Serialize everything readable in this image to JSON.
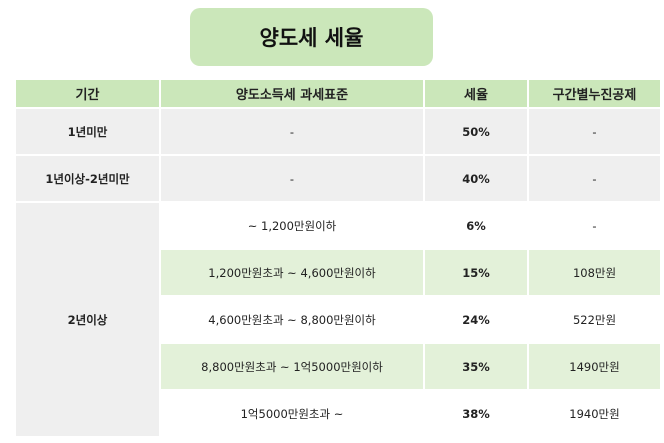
{
  "title": "양도세 세율",
  "headers": {
    "period": "기간",
    "tax_base": "양도소득세 과세표준",
    "rate": "세율",
    "deduction": "구간별누진공제"
  },
  "rows": [
    {
      "period": "1년미만",
      "tax_base": "-",
      "rate": "50%",
      "deduction": "-"
    },
    {
      "period": "1년이상-2년미만",
      "tax_base": "-",
      "rate": "40%",
      "deduction": "-"
    }
  ],
  "group": {
    "period": "2년이상",
    "rows": [
      {
        "tax_base": "~ 1,200만원이하",
        "rate": "6%",
        "deduction": "-"
      },
      {
        "tax_base": "1,200만원초과 ~ 4,600만원이하",
        "rate": "15%",
        "deduction": "108만원"
      },
      {
        "tax_base": "4,600만원초과 ~ 8,800만원이하",
        "rate": "24%",
        "deduction": "522만원"
      },
      {
        "tax_base": "8,800만원초과 ~ 1억5000만원이하",
        "rate": "35%",
        "deduction": "1490만원"
      },
      {
        "tax_base": "1억5000만원초과 ~",
        "rate": "38%",
        "deduction": "1940만원"
      }
    ]
  },
  "colors": {
    "header_bg": "#cbe7ba",
    "rate_text": "#e0202a",
    "gray_cell": "#efefef",
    "light_green_cell": "#e3f1d9"
  }
}
